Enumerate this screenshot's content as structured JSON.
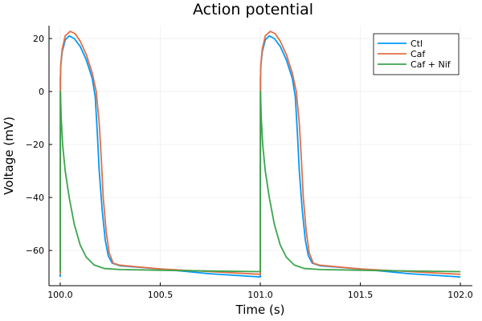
{
  "chart_data": {
    "type": "line",
    "title": "Action potential",
    "xlabel": "Time (s)",
    "ylabel": "Voltage (mV)",
    "xlim": [
      99.944,
      102.06
    ],
    "ylim": [
      -73.3,
      24.85
    ],
    "xticks": [
      100.0,
      100.5,
      101.0,
      101.5,
      102.0
    ],
    "xtick_labels": [
      "100.0",
      "100.5",
      "101.0",
      "101.5",
      "102.0"
    ],
    "yticks": [
      20,
      0,
      -20,
      -40,
      -60
    ],
    "ytick_labels": [
      "20",
      "0",
      "−20",
      "−40",
      "−60"
    ],
    "grid": true,
    "legend_position": "top-right",
    "series": [
      {
        "name": "Ctl",
        "color": "#009af9",
        "points": [
          [
            100.0,
            -70
          ],
          [
            100.001,
            5
          ],
          [
            100.003,
            10
          ],
          [
            100.01,
            15
          ],
          [
            100.025,
            19.5
          ],
          [
            100.045,
            21
          ],
          [
            100.07,
            20
          ],
          [
            100.1,
            17
          ],
          [
            100.13,
            12
          ],
          [
            100.16,
            5
          ],
          [
            100.175,
            -2
          ],
          [
            100.185,
            -15
          ],
          [
            100.195,
            -30
          ],
          [
            100.21,
            -45
          ],
          [
            100.225,
            -56
          ],
          [
            100.24,
            -62
          ],
          [
            100.26,
            -64.8
          ],
          [
            100.3,
            -65.8
          ],
          [
            100.5,
            -67
          ],
          [
            100.75,
            -68.8
          ],
          [
            100.999,
            -70
          ],
          [
            101.0,
            -70
          ],
          [
            101.001,
            5
          ],
          [
            101.003,
            10
          ],
          [
            101.01,
            15
          ],
          [
            101.025,
            19.5
          ],
          [
            101.045,
            21
          ],
          [
            101.07,
            20
          ],
          [
            101.1,
            17
          ],
          [
            101.13,
            12
          ],
          [
            101.16,
            5
          ],
          [
            101.175,
            -2
          ],
          [
            101.185,
            -15
          ],
          [
            101.195,
            -30
          ],
          [
            101.21,
            -45
          ],
          [
            101.225,
            -56
          ],
          [
            101.24,
            -62
          ],
          [
            101.26,
            -64.8
          ],
          [
            101.3,
            -65.8
          ],
          [
            101.5,
            -67
          ],
          [
            101.75,
            -68.8
          ],
          [
            102.0,
            -70
          ]
        ]
      },
      {
        "name": "Caf",
        "color": "#e26f46",
        "points": [
          [
            100.0,
            -69
          ],
          [
            100.001,
            5
          ],
          [
            100.003,
            10
          ],
          [
            100.01,
            16
          ],
          [
            100.025,
            21
          ],
          [
            100.05,
            22.7
          ],
          [
            100.075,
            21.8
          ],
          [
            100.1,
            19
          ],
          [
            100.13,
            14
          ],
          [
            100.16,
            7
          ],
          [
            100.18,
            0
          ],
          [
            100.195,
            -12
          ],
          [
            100.205,
            -25
          ],
          [
            100.215,
            -40
          ],
          [
            100.23,
            -53
          ],
          [
            100.245,
            -61
          ],
          [
            100.265,
            -64.8
          ],
          [
            100.3,
            -65.6
          ],
          [
            100.5,
            -67
          ],
          [
            100.75,
            -68
          ],
          [
            100.999,
            -69
          ],
          [
            101.0,
            -69
          ],
          [
            101.001,
            5
          ],
          [
            101.003,
            10
          ],
          [
            101.01,
            16
          ],
          [
            101.025,
            21
          ],
          [
            101.05,
            22.7
          ],
          [
            101.075,
            21.8
          ],
          [
            101.1,
            19
          ],
          [
            101.13,
            14
          ],
          [
            101.16,
            7
          ],
          [
            101.18,
            0
          ],
          [
            101.195,
            -12
          ],
          [
            101.205,
            -25
          ],
          [
            101.215,
            -40
          ],
          [
            101.23,
            -53
          ],
          [
            101.245,
            -61
          ],
          [
            101.265,
            -64.8
          ],
          [
            101.3,
            -65.6
          ],
          [
            101.5,
            -67
          ],
          [
            101.75,
            -68
          ],
          [
            102.0,
            -69
          ]
        ]
      },
      {
        "name": "Caf + Nif",
        "color": "#3da44d",
        "points": [
          [
            100.0,
            -68
          ],
          [
            100.001,
            0
          ],
          [
            100.005,
            -10
          ],
          [
            100.012,
            -20
          ],
          [
            100.025,
            -30
          ],
          [
            100.045,
            -40
          ],
          [
            100.07,
            -50
          ],
          [
            100.1,
            -58
          ],
          [
            100.13,
            -62.5
          ],
          [
            100.17,
            -65.5
          ],
          [
            100.22,
            -66.8
          ],
          [
            100.3,
            -67.2
          ],
          [
            100.6,
            -67.6
          ],
          [
            100.999,
            -68
          ],
          [
            101.0,
            -68
          ],
          [
            101.001,
            0
          ],
          [
            101.005,
            -10
          ],
          [
            101.012,
            -20
          ],
          [
            101.025,
            -30
          ],
          [
            101.045,
            -40
          ],
          [
            101.07,
            -50
          ],
          [
            101.1,
            -58
          ],
          [
            101.13,
            -62.5
          ],
          [
            101.17,
            -65.5
          ],
          [
            101.22,
            -66.8
          ],
          [
            101.3,
            -67.2
          ],
          [
            101.6,
            -67.6
          ],
          [
            102.0,
            -68
          ]
        ]
      }
    ]
  }
}
